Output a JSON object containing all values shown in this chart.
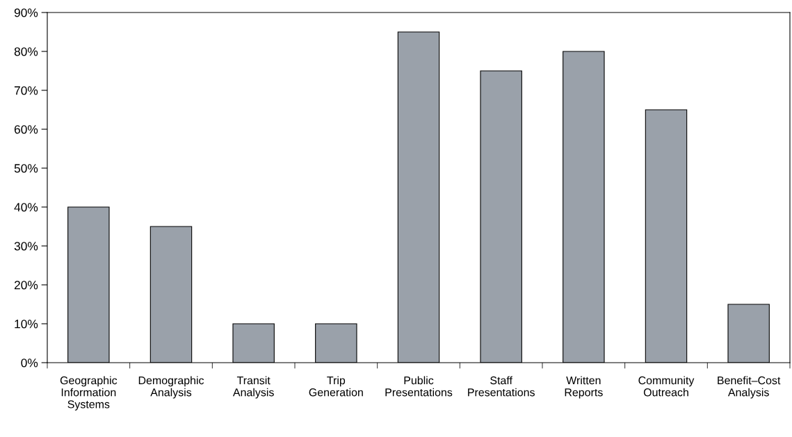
{
  "chart_data": {
    "type": "bar",
    "categories": [
      "Geographic\nInformation\nSystems",
      "Demographic\nAnalysis",
      "Transit\nAnalysis",
      "Trip\nGeneration",
      "Public\nPresentations",
      "Staff\nPresentations",
      "Written\nReports",
      "Community\nOutreach",
      "Benefit–Cost\nAnalysis"
    ],
    "values": [
      40,
      35,
      10,
      10,
      85,
      75,
      80,
      65,
      15
    ],
    "color": "#9aa1aa",
    "ylim": [
      0,
      90
    ],
    "yticks": [
      {
        "value": 0,
        "label": "0%"
      },
      {
        "value": 10,
        "label": "10%"
      },
      {
        "value": 20,
        "label": "20%"
      },
      {
        "value": 30,
        "label": "30%"
      },
      {
        "value": 40,
        "label": "40%"
      },
      {
        "value": 50,
        "label": "50%"
      },
      {
        "value": 60,
        "label": "60%"
      },
      {
        "value": 70,
        "label": "70%"
      },
      {
        "value": 80,
        "label": "80%"
      },
      {
        "value": 90,
        "label": "90%"
      }
    ],
    "grid": false,
    "legend": false
  }
}
